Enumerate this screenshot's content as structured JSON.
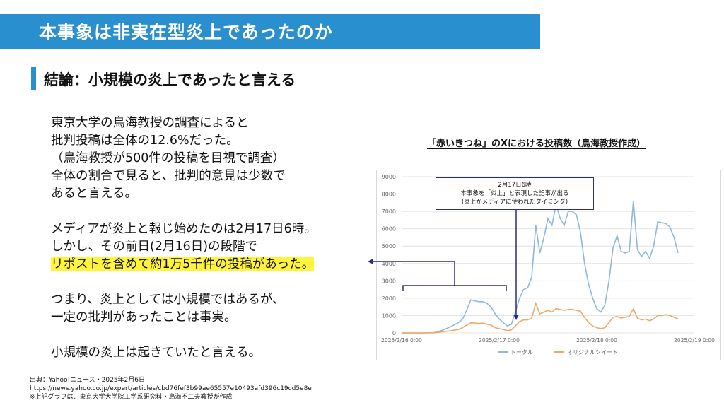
{
  "header": {
    "title": "本事象は非実在型炎上であったのか"
  },
  "conclusion": {
    "text": "結論：小規模の炎上であったと言える"
  },
  "body": {
    "p1": [
      "東京大学の鳥海教授の調査によると",
      "批判投稿は全体の12.6%だった。",
      "（鳥海教授が500件の投稿を目視で調査）",
      "全体の割合で見ると、批判的意見は少数で",
      "あると言える。"
    ],
    "p2": [
      "メディアが炎上と報じ始めたのは2月17日6時。",
      "しかし、その前日(2月16日)の段階で"
    ],
    "highlight": "リポストを含めて約1万5千件の投稿があった。",
    "p3": [
      "つまり、炎上としては小規模ではあるが、",
      "一定の批判があったことは事実。"
    ],
    "p4": [
      "小規模の炎上は起きていたと言える。"
    ]
  },
  "source": {
    "line1": "出典：Yahoo!ニュース・2025年2月6日",
    "line2": "https://news.yahoo.co.jp/expert/articles/cbd76fef3b99ae65557e10493afd396c19cd5e8e",
    "line3": "※上記グラフは、東京大学大学院工学系研究科・鳥海不二夫教授が作成"
  },
  "annotation": {
    "line1": "2月17日6時",
    "line2": "本事象を「炎上」と表現した記事が出る",
    "line3": "(炎上がメディアに使われたタイミング)"
  },
  "colors": {
    "header": "#2a8fce",
    "total": "#8fb8dc",
    "original": "#f0a868",
    "highlight": "#fff33b",
    "arrow": "#2b2b8c"
  },
  "chart_data": {
    "type": "line",
    "title": "「赤いきつね」のXにおける投稿数（鳥海教授作成）",
    "ylim": [
      0,
      9000
    ],
    "yticks": [
      0,
      1000,
      2000,
      3000,
      4000,
      5000,
      6000,
      7000,
      8000,
      9000
    ],
    "xlim": [
      0,
      72
    ],
    "xticks": [
      {
        "x": 0,
        "label": "2025/2/16 0:00"
      },
      {
        "x": 24,
        "label": "2025/2/17 0:00"
      },
      {
        "x": 48,
        "label": "2025/2/18 0:00"
      },
      {
        "x": 72,
        "label": "2025/2/19 0:00"
      }
    ],
    "series": [
      {
        "name": "トータル",
        "color": "#8fb8dc",
        "points": [
          [
            0,
            0
          ],
          [
            2,
            0
          ],
          [
            4,
            0
          ],
          [
            6,
            0
          ],
          [
            8,
            20
          ],
          [
            10,
            150
          ],
          [
            12,
            350
          ],
          [
            14,
            600
          ],
          [
            15,
            800
          ],
          [
            16,
            1300
          ],
          [
            17,
            1900
          ],
          [
            18,
            1850
          ],
          [
            19,
            1800
          ],
          [
            20,
            1800
          ],
          [
            21,
            1700
          ],
          [
            22,
            1500
          ],
          [
            23,
            1100
          ],
          [
            24,
            800
          ],
          [
            25,
            600
          ],
          [
            26,
            400
          ],
          [
            27,
            500
          ],
          [
            28,
            1200
          ],
          [
            29,
            2000
          ],
          [
            30,
            2500
          ],
          [
            31,
            2600
          ],
          [
            32,
            3200
          ],
          [
            33,
            6200
          ],
          [
            34,
            4600
          ],
          [
            35,
            5500
          ],
          [
            36,
            6600
          ],
          [
            37,
            6200
          ],
          [
            38,
            7400
          ],
          [
            39,
            6600
          ],
          [
            40,
            6200
          ],
          [
            41,
            7000
          ],
          [
            42,
            7000
          ],
          [
            43,
            6800
          ],
          [
            44,
            5800
          ],
          [
            45,
            4000
          ],
          [
            46,
            2800
          ],
          [
            47,
            2000
          ],
          [
            48,
            1400
          ],
          [
            49,
            1200
          ],
          [
            50,
            1600
          ],
          [
            51,
            3000
          ],
          [
            52,
            4900
          ],
          [
            53,
            5600
          ],
          [
            54,
            4700
          ],
          [
            55,
            4600
          ],
          [
            56,
            4700
          ],
          [
            57,
            7600
          ],
          [
            58,
            4800
          ],
          [
            59,
            4400
          ],
          [
            60,
            4700
          ],
          [
            61,
            4300
          ],
          [
            62,
            5000
          ],
          [
            63,
            6400
          ],
          [
            64,
            6350
          ],
          [
            65,
            6300
          ],
          [
            66,
            6100
          ],
          [
            67,
            5500
          ],
          [
            68,
            4600
          ]
        ]
      },
      {
        "name": "オリジナルツイート",
        "color": "#f0a868",
        "points": [
          [
            0,
            0
          ],
          [
            2,
            0
          ],
          [
            4,
            0
          ],
          [
            6,
            0
          ],
          [
            8,
            10
          ],
          [
            10,
            60
          ],
          [
            12,
            120
          ],
          [
            14,
            200
          ],
          [
            15,
            300
          ],
          [
            16,
            450
          ],
          [
            17,
            580
          ],
          [
            18,
            570
          ],
          [
            19,
            550
          ],
          [
            20,
            560
          ],
          [
            21,
            500
          ],
          [
            22,
            450
          ],
          [
            23,
            300
          ],
          [
            24,
            250
          ],
          [
            25,
            200
          ],
          [
            26,
            130
          ],
          [
            27,
            180
          ],
          [
            28,
            400
          ],
          [
            29,
            650
          ],
          [
            30,
            750
          ],
          [
            31,
            750
          ],
          [
            32,
            850
          ],
          [
            33,
            1700
          ],
          [
            34,
            1100
          ],
          [
            35,
            1200
          ],
          [
            36,
            1300
          ],
          [
            37,
            1200
          ],
          [
            38,
            1400
          ],
          [
            39,
            1350
          ],
          [
            40,
            1300
          ],
          [
            41,
            1350
          ],
          [
            42,
            1350
          ],
          [
            43,
            1300
          ],
          [
            44,
            1250
          ],
          [
            45,
            900
          ],
          [
            46,
            600
          ],
          [
            47,
            400
          ],
          [
            48,
            300
          ],
          [
            49,
            250
          ],
          [
            50,
            300
          ],
          [
            51,
            600
          ],
          [
            52,
            900
          ],
          [
            53,
            950
          ],
          [
            54,
            850
          ],
          [
            55,
            900
          ],
          [
            56,
            950
          ],
          [
            57,
            1400
          ],
          [
            58,
            850
          ],
          [
            59,
            750
          ],
          [
            60,
            800
          ],
          [
            61,
            700
          ],
          [
            62,
            800
          ],
          [
            63,
            1000
          ],
          [
            64,
            1000
          ],
          [
            65,
            1050
          ],
          [
            66,
            1000
          ],
          [
            67,
            900
          ],
          [
            68,
            800
          ]
        ]
      }
    ],
    "legend_position": "bottom"
  }
}
